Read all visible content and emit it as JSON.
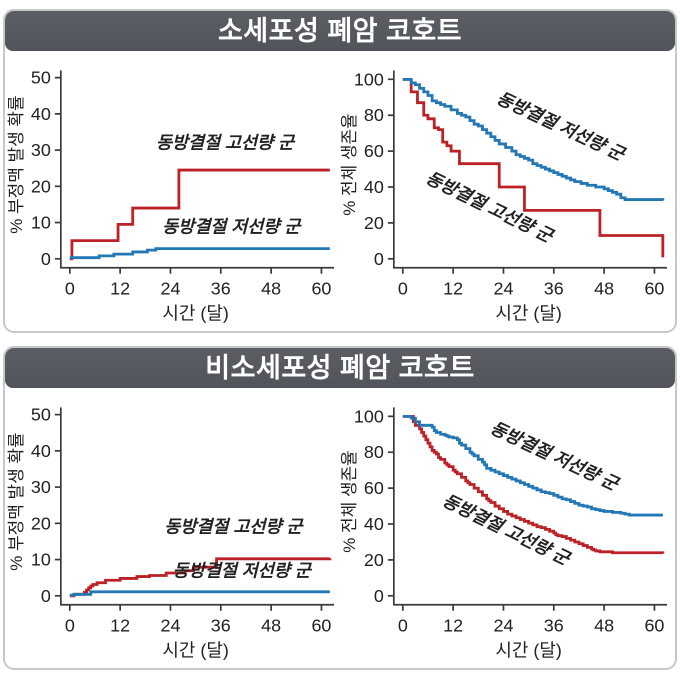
{
  "panels": [
    {
      "title": "소세포성 폐암 코호트"
    },
    {
      "title": "비소세포성 폐암 코호트"
    }
  ],
  "colors": {
    "high_dose_line": "#bb2126",
    "low_dose_line": "#2277b4",
    "high_dose_label": "#d04b50",
    "low_dose_label": "#57a6dc",
    "title_bar": "#54575d",
    "panel_border": "#c8c8ca",
    "axis": "#3a3a3a",
    "tick_text": "#222222"
  },
  "chart_data": [
    {
      "panel": "소세포성 폐암 코호트",
      "position": "left",
      "type": "line",
      "step": true,
      "xlabel": "시간 (달)",
      "ylabel": "% 부정맥 발생 확률",
      "xlim": [
        0,
        63
      ],
      "ylim": [
        0,
        52
      ],
      "xticks": [
        0,
        12,
        24,
        36,
        48,
        60
      ],
      "yticks": [
        0,
        10,
        20,
        30,
        40,
        50
      ],
      "grid": false,
      "series": [
        {
          "name": "동방결절 고선량 군",
          "color": "#bb2126",
          "points": [
            [
              0,
              0
            ],
            [
              0.5,
              5
            ],
            [
              11.5,
              9.5
            ],
            [
              15,
              14
            ],
            [
              26,
              24.5
            ],
            [
              62,
              24.5
            ]
          ]
        },
        {
          "name": "동방결절 저선량 군",
          "color": "#2277b4",
          "points": [
            [
              0,
              0.3
            ],
            [
              7,
              0.8
            ],
            [
              10.5,
              1.3
            ],
            [
              15,
              1.9
            ],
            [
              18.5,
              2.4
            ],
            [
              20.5,
              2.8
            ],
            [
              62,
              2.8
            ]
          ]
        }
      ],
      "labels": [
        {
          "text": "동방결절 고선량 군",
          "x": 37,
          "y": 30.5,
          "rot": 0,
          "color": "#d04b50"
        },
        {
          "text": "동방결절 저선량 군",
          "x": 38.5,
          "y": 7.3,
          "rot": 0,
          "color": "#57a6dc"
        }
      ]
    },
    {
      "panel": "소세포성 폐암 코호트",
      "position": "right",
      "type": "line",
      "step": true,
      "xlabel": "시간 (달)",
      "ylabel": "% 전체 생존율",
      "xlim": [
        0,
        63
      ],
      "ylim": [
        0,
        105
      ],
      "xticks": [
        0,
        12,
        24,
        36,
        48,
        60
      ],
      "yticks": [
        0,
        20,
        40,
        60,
        80,
        100
      ],
      "grid": false,
      "series": [
        {
          "name": "동방결절 고선량 군",
          "color": "#bb2126",
          "points": [
            [
              0,
              100
            ],
            [
              2,
              93
            ],
            [
              3.5,
              87
            ],
            [
              5,
              80
            ],
            [
              6,
              78
            ],
            [
              7.5,
              73
            ],
            [
              8.5,
              72
            ],
            [
              9.5,
              65
            ],
            [
              10.5,
              63
            ],
            [
              11.5,
              60
            ],
            [
              13.5,
              53
            ],
            [
              23,
              40
            ],
            [
              29,
              27
            ],
            [
              47,
              13
            ],
            [
              62,
              0.8
            ]
          ]
        },
        {
          "name": "동방결절 저선량 군",
          "color": "#2277b4",
          "points": [
            [
              0,
              100
            ],
            [
              2,
              98
            ],
            [
              3,
              97
            ],
            [
              4,
              95
            ],
            [
              5,
              93
            ],
            [
              6,
              91
            ],
            [
              7,
              88
            ],
            [
              8,
              87
            ],
            [
              9,
              86
            ],
            [
              10,
              85
            ],
            [
              11.5,
              83
            ],
            [
              13,
              81
            ],
            [
              14,
              80
            ],
            [
              15,
              79
            ],
            [
              16,
              77
            ],
            [
              17,
              75
            ],
            [
              18,
              74
            ],
            [
              19,
              72
            ],
            [
              20,
              70
            ],
            [
              21,
              68
            ],
            [
              22,
              66
            ],
            [
              23,
              64
            ],
            [
              24.5,
              62
            ],
            [
              26,
              60
            ],
            [
              27,
              58
            ],
            [
              28,
              57
            ],
            [
              29,
              56
            ],
            [
              30,
              55
            ],
            [
              31,
              53
            ],
            [
              32,
              52
            ],
            [
              33,
              51
            ],
            [
              34,
              50
            ],
            [
              35,
              49
            ],
            [
              36,
              48
            ],
            [
              37,
              47
            ],
            [
              38,
              46
            ],
            [
              39,
              45
            ],
            [
              40,
              44
            ],
            [
              41,
              43
            ],
            [
              42.5,
              42
            ],
            [
              44,
              41
            ],
            [
              46,
              40
            ],
            [
              48,
              39
            ],
            [
              49,
              38
            ],
            [
              50,
              37
            ],
            [
              51,
              36
            ],
            [
              52,
              34
            ],
            [
              53,
              33
            ],
            [
              62,
              32.5
            ]
          ]
        }
      ],
      "labels": [
        {
          "text": "동방결절 저선량 군",
          "x": 37,
          "y": 71,
          "rot": 25,
          "color": "#57a6dc"
        },
        {
          "text": "동방결절 고선량 군",
          "x": 20,
          "y": 26,
          "rot": 26,
          "color": "#d04b50"
        }
      ]
    },
    {
      "panel": "비소세포성 폐암 코호트",
      "position": "left",
      "type": "line",
      "step": true,
      "xlabel": "시간 (달)",
      "ylabel": "% 부정맥 발생 확률",
      "xlim": [
        0,
        63
      ],
      "ylim": [
        0,
        52
      ],
      "xticks": [
        0,
        12,
        24,
        36,
        48,
        60
      ],
      "yticks": [
        0,
        10,
        20,
        30,
        40,
        50
      ],
      "grid": false,
      "series": [
        {
          "name": "동방결절 고선량 군",
          "color": "#bb2126",
          "points": [
            [
              0,
              0
            ],
            [
              1,
              0.4
            ],
            [
              3.5,
              1
            ],
            [
              4,
              1.6
            ],
            [
              4.5,
              2.2
            ],
            [
              5,
              2.7
            ],
            [
              5.5,
              3.1
            ],
            [
              6.5,
              3.6
            ],
            [
              8.5,
              4.3
            ],
            [
              12,
              4.8
            ],
            [
              16,
              5.3
            ],
            [
              19,
              5.6
            ],
            [
              23,
              6.3
            ],
            [
              27.5,
              6.9
            ],
            [
              29.5,
              7.9
            ],
            [
              35,
              10.2
            ],
            [
              62,
              10.4
            ]
          ]
        },
        {
          "name": "동방결절 저선량 군",
          "color": "#2277b4",
          "points": [
            [
              0,
              0.2
            ],
            [
              1,
              0.4
            ],
            [
              5,
              1.1
            ],
            [
              62,
              1.1
            ]
          ]
        }
      ],
      "labels": [
        {
          "text": "동방결절 고선량 군",
          "x": 39,
          "y": 17.5,
          "rot": 0,
          "color": "#d04b50"
        },
        {
          "text": "동방결절 저선량 군",
          "x": 41,
          "y": 5.3,
          "rot": 0,
          "color": "#57a6dc"
        }
      ]
    },
    {
      "panel": "비소세포성 폐암 코호트",
      "position": "right",
      "type": "line",
      "step": true,
      "xlabel": "시간 (달)",
      "ylabel": "% 전체 생존율",
      "xlim": [
        0,
        63
      ],
      "ylim": [
        0,
        105
      ],
      "xticks": [
        0,
        12,
        24,
        36,
        48,
        60
      ],
      "yticks": [
        0,
        20,
        40,
        60,
        80,
        100
      ],
      "grid": false,
      "series": [
        {
          "name": "동방결절 고선량 군",
          "color": "#bb2126",
          "points": [
            [
              0,
              100
            ],
            [
              2,
              100
            ],
            [
              2.5,
              97
            ],
            [
              3,
              95
            ],
            [
              4,
              93
            ],
            [
              4.5,
              91
            ],
            [
              5,
              89
            ],
            [
              5.5,
              87
            ],
            [
              6,
              85
            ],
            [
              6.5,
              83
            ],
            [
              7,
              81
            ],
            [
              7.5,
              80
            ],
            [
              8,
              79
            ],
            [
              8.5,
              77
            ],
            [
              9,
              76
            ],
            [
              10,
              74
            ],
            [
              10.5,
              73
            ],
            [
              11,
              72
            ],
            [
              12,
              70
            ],
            [
              12.5,
              69
            ],
            [
              13,
              68
            ],
            [
              14,
              66
            ],
            [
              15,
              64
            ],
            [
              15.5,
              63
            ],
            [
              16,
              62
            ],
            [
              17,
              60
            ],
            [
              18,
              58
            ],
            [
              19,
              56
            ],
            [
              20,
              54
            ],
            [
              20.5,
              53
            ],
            [
              21,
              52
            ],
            [
              22,
              50
            ],
            [
              23,
              48.5
            ],
            [
              24,
              47
            ],
            [
              25,
              45.5
            ],
            [
              26,
              44.5
            ],
            [
              27,
              43.5
            ],
            [
              28,
              42.5
            ],
            [
              29,
              41.5
            ],
            [
              30,
              40.5
            ],
            [
              31,
              39.5
            ],
            [
              32,
              38.5
            ],
            [
              33,
              38
            ],
            [
              34,
              37
            ],
            [
              35,
              36
            ],
            [
              36,
              35
            ],
            [
              36.5,
              34
            ],
            [
              37,
              33.5
            ],
            [
              38,
              33
            ],
            [
              39,
              32
            ],
            [
              40,
              31
            ],
            [
              41,
              30
            ],
            [
              42,
              29
            ],
            [
              43,
              28
            ],
            [
              44,
              27
            ],
            [
              45,
              26
            ],
            [
              45.5,
              25.5
            ],
            [
              46,
              25
            ],
            [
              47,
              24.5
            ],
            [
              48,
              24.5
            ],
            [
              50,
              24
            ],
            [
              62,
              23.5
            ]
          ]
        },
        {
          "name": "동방결절 저선량 군",
          "color": "#2277b4",
          "points": [
            [
              0,
              100
            ],
            [
              2,
              99
            ],
            [
              3,
              97
            ],
            [
              4,
              95
            ],
            [
              7,
              94
            ],
            [
              7.5,
              92
            ],
            [
              8,
              91
            ],
            [
              9,
              90
            ],
            [
              10,
              89.5
            ],
            [
              10.5,
              89
            ],
            [
              11,
              88.5
            ],
            [
              12,
              88
            ],
            [
              13,
              87
            ],
            [
              13.5,
              85
            ],
            [
              14,
              84
            ],
            [
              15,
              82
            ],
            [
              16,
              80
            ],
            [
              16.5,
              79
            ],
            [
              17,
              78
            ],
            [
              18,
              76
            ],
            [
              19,
              74.5
            ],
            [
              19.5,
              73
            ],
            [
              20,
              71
            ],
            [
              21,
              70
            ],
            [
              22,
              69
            ],
            [
              23,
              68
            ],
            [
              24,
              67
            ],
            [
              25,
              66
            ],
            [
              26,
              65
            ],
            [
              27,
              64
            ],
            [
              28,
              63
            ],
            [
              29,
              62
            ],
            [
              30,
              61
            ],
            [
              31,
              60
            ],
            [
              32,
              59
            ],
            [
              33,
              58
            ],
            [
              34,
              57.5
            ],
            [
              35,
              57
            ],
            [
              36,
              56
            ],
            [
              37,
              55
            ],
            [
              38,
              54
            ],
            [
              39,
              53.5
            ],
            [
              40,
              52.5
            ],
            [
              41,
              51.5
            ],
            [
              42,
              50.5
            ],
            [
              43,
              50
            ],
            [
              44,
              49.5
            ],
            [
              45,
              48.5
            ],
            [
              46,
              48
            ],
            [
              47,
              47.5
            ],
            [
              48,
              47
            ],
            [
              50,
              46.5
            ],
            [
              52,
              46
            ],
            [
              53,
              45.5
            ],
            [
              54,
              45
            ],
            [
              62,
              45
            ]
          ]
        }
      ],
      "labels": [
        {
          "text": "동방결절 저선량 군",
          "x": 35.5,
          "y": 75,
          "rot": 25,
          "color": "#57a6dc"
        },
        {
          "text": "동방결절 고선량 군",
          "x": 24,
          "y": 34,
          "rot": 26,
          "color": "#d04b50"
        }
      ]
    }
  ]
}
